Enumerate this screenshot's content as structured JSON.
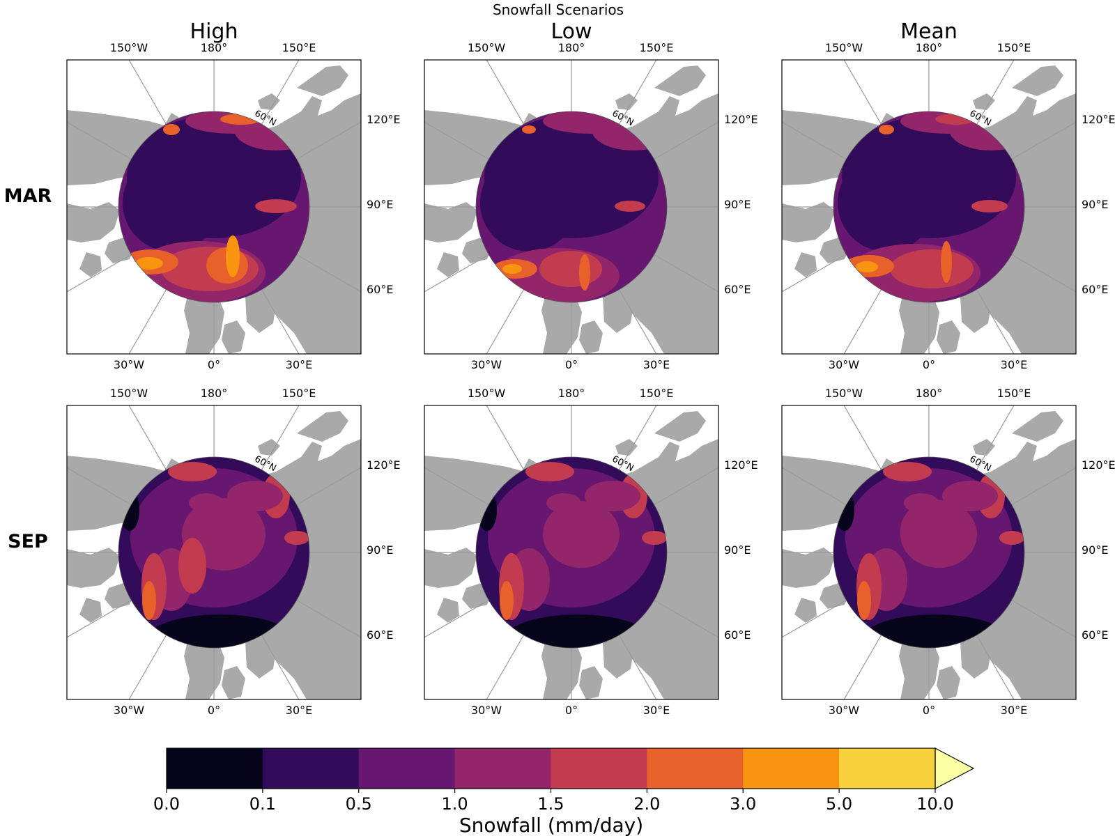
{
  "figure": {
    "title": "Snowfall Scenarios",
    "columns": [
      "High",
      "Low",
      "Mean"
    ],
    "rows": [
      "MAR",
      "SEP"
    ]
  },
  "map": {
    "projection": "north-polar-stereographic",
    "parallel_label": "60°N",
    "lon_labels_top": [
      "150°W",
      "180°",
      "150°E"
    ],
    "lon_labels_right": [
      "120°E",
      "90°E",
      "60°E"
    ],
    "lon_labels_bottom": [
      "30°W",
      "0°",
      "30°E"
    ],
    "land_color": "#a9a9a9",
    "gridline_color": "#9a9a9a"
  },
  "colorbar": {
    "label": "Snowfall (mm/day)",
    "ticks": [
      "0.0",
      "0.1",
      "0.5",
      "1.0",
      "1.5",
      "2.0",
      "3.0",
      "5.0",
      "10.0"
    ],
    "colors": [
      "#07051c",
      "#320b5a",
      "#67176f",
      "#93256a",
      "#c33b4f",
      "#e8602a",
      "#f89410",
      "#f7d13c"
    ],
    "extend_color": "#fcfea4",
    "extend": "max"
  },
  "chart_data": {
    "type": "heatmap",
    "title": "Snowfall Scenarios",
    "columns": [
      "High",
      "Low",
      "Mean"
    ],
    "rows": [
      "MAR",
      "SEP"
    ],
    "value_label": "Snowfall (mm/day)",
    "levels": [
      0.0,
      0.1,
      0.5,
      1.0,
      1.5,
      2.0,
      3.0,
      5.0,
      10.0
    ],
    "panels": [
      {
        "row": "MAR",
        "column": "High",
        "central_arctic_level": "0.1-0.5",
        "atlantic_sector_level": "1.5-3.0",
        "peak_level": "3.0-5.0"
      },
      {
        "row": "MAR",
        "column": "Low",
        "central_arctic_level": "0.1-0.5",
        "atlantic_sector_level": "1.0-2.0",
        "peak_level": "3.0-5.0"
      },
      {
        "row": "MAR",
        "column": "Mean",
        "central_arctic_level": "0.1-0.5",
        "atlantic_sector_level": "1.5-2.0",
        "peak_level": "3.0-5.0"
      },
      {
        "row": "SEP",
        "column": "High",
        "central_arctic_level": "1.0-1.5",
        "atlantic_sector_level": "0.0-0.1",
        "peak_level": "3.0-5.0"
      },
      {
        "row": "SEP",
        "column": "Low",
        "central_arctic_level": "0.5-1.0",
        "atlantic_sector_level": "0.0-0.1",
        "peak_level": "3.0-5.0"
      },
      {
        "row": "SEP",
        "column": "Mean",
        "central_arctic_level": "0.5-1.0",
        "atlantic_sector_level": "0.0-0.1",
        "peak_level": "3.0-5.0"
      }
    ]
  }
}
